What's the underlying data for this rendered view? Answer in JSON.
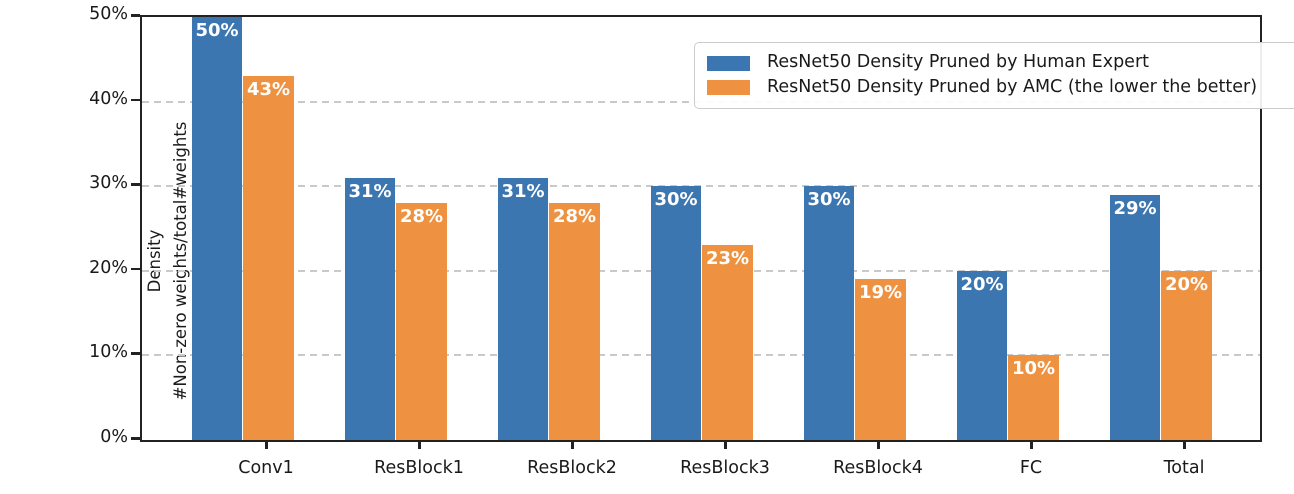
{
  "chart_data": {
    "type": "bar",
    "title": "",
    "categories": [
      "Conv1",
      "ResBlock1",
      "ResBlock2",
      "ResBlock3",
      "ResBlock4",
      "FC",
      "Total"
    ],
    "series": [
      {
        "name": "ResNet50 Density Pruned by Human Expert",
        "color": "#3c76b1",
        "values": [
          50,
          31,
          31,
          30,
          30,
          20,
          29
        ],
        "value_labels": [
          "50%",
          "31%",
          "31%",
          "30%",
          "30%",
          "20%",
          "29%"
        ]
      },
      {
        "name": "ResNet50 Density Pruned by AMC (the lower the better)",
        "color": "#ee9241",
        "values": [
          43,
          28,
          28,
          23,
          19,
          10,
          20
        ],
        "value_labels": [
          "43%",
          "28%",
          "28%",
          "23%",
          "19%",
          "10%",
          "20%"
        ]
      }
    ],
    "xlabel": "",
    "ylabel": {
      "line1": "Density",
      "line2": "#Non-zero weights/total#weights"
    },
    "yticks": [
      {
        "value": 0,
        "label": "0%"
      },
      {
        "value": 10,
        "label": "10%"
      },
      {
        "value": 20,
        "label": "20%"
      },
      {
        "value": 30,
        "label": "30%"
      },
      {
        "value": 40,
        "label": "40%"
      },
      {
        "value": 50,
        "label": "50%"
      }
    ],
    "ylim": [
      0,
      50
    ],
    "grid": "horizontal-dashed",
    "legend_position": "upper-right",
    "value_label_color": "#ffffff",
    "grid_color": "#c9c9c9",
    "spine_color": "#222222"
  }
}
